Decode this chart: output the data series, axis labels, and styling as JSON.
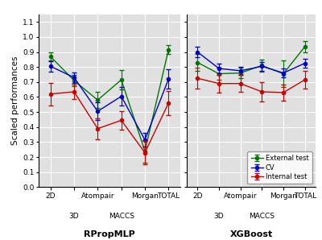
{
  "rprop_cv_y": [
    0.805,
    0.73,
    0.505,
    0.605,
    0.315,
    0.72
  ],
  "rprop_cv_err": [
    0.035,
    0.035,
    0.06,
    0.06,
    0.045,
    0.065
  ],
  "rprop_int_y": [
    0.62,
    0.635,
    0.39,
    0.445,
    0.23,
    0.56
  ],
  "rprop_int_err": [
    0.075,
    0.05,
    0.07,
    0.06,
    0.08,
    0.08
  ],
  "rprop_ext_y": [
    0.87,
    0.71,
    0.58,
    0.715,
    0.24,
    0.915
  ],
  "rprop_ext_err": [
    0.025,
    0.035,
    0.055,
    0.065,
    0.075,
    0.03
  ],
  "xgb_cv_y": [
    0.9,
    0.79,
    0.775,
    0.805,
    0.76,
    0.825
  ],
  "xgb_cv_err": [
    0.035,
    0.03,
    0.025,
    0.03,
    0.03,
    0.03
  ],
  "xgb_int_y": [
    0.725,
    0.69,
    0.69,
    0.635,
    0.63,
    0.715
  ],
  "xgb_int_err": [
    0.07,
    0.06,
    0.055,
    0.065,
    0.055,
    0.06
  ],
  "xgb_ext_y": [
    0.83,
    0.755,
    0.76,
    0.81,
    0.755,
    0.935
  ],
  "xgb_ext_err": [
    0.055,
    0.04,
    0.035,
    0.04,
    0.09,
    0.04
  ],
  "cv_color": "#0000cc",
  "int_color": "#cc0000",
  "ext_color": "#007700",
  "ylabel": "Scaled performances",
  "ylim": [
    0.0,
    1.15
  ],
  "yticks": [
    0.0,
    0.1,
    0.2,
    0.3,
    0.4,
    0.5,
    0.6,
    0.7,
    0.8,
    0.9,
    1.0,
    1.1
  ],
  "title_left": "RPropMLP",
  "title_right": "XGBoost",
  "legend_labels": [
    "CV",
    "Internal test",
    "External test"
  ],
  "bg_color": "#e0e0e0"
}
